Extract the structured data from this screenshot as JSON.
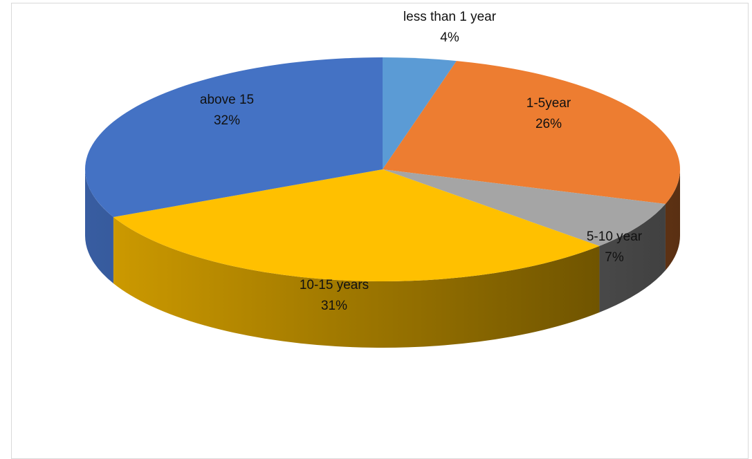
{
  "chart_data": {
    "type": "pie",
    "style": "3d",
    "categories": [
      "less than 1 year",
      "1-5year",
      "5-10 year",
      "10-15 years",
      "above 15"
    ],
    "values": [
      4,
      26,
      7,
      31,
      32
    ],
    "percent_labels": [
      "4%",
      "26%",
      "7%",
      "31%",
      "32%"
    ],
    "title": "",
    "legend": "none",
    "colors": [
      "#5b9bd5",
      "#ed7d31",
      "#a5a5a5",
      "#ffc000",
      "#4472c4"
    ]
  }
}
